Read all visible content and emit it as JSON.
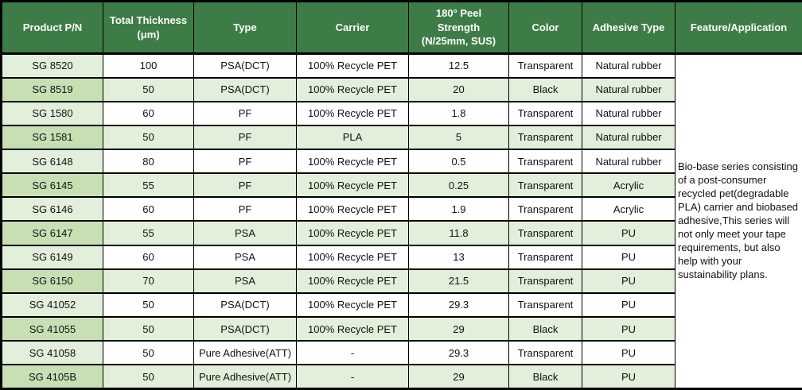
{
  "title": "Bio-base series tape product specification table",
  "colors": {
    "header_bg": "#3D7C46",
    "header_text": "#FFFFFF",
    "row_light": "#E2EFDA",
    "row_medium": "#C6E0B4",
    "row_white": "#FFFFFF",
    "border": "#000000",
    "body_text": "#111111"
  },
  "table": {
    "headers": [
      "Product P/N",
      "Total Thickness\n(μm)",
      "Type",
      "Carrier",
      "180° Peel\nStrength\n(N/25mm, SUS)",
      "Color",
      "Adhesive Type",
      "Feature/Application"
    ],
    "rows": [
      [
        "SG 8520",
        "100",
        "PSA(DCT)",
        "100% Recycle PET",
        "12.5",
        "Transparent",
        "Natural rubber"
      ],
      [
        "SG 8519",
        "50",
        "PSA(DCT)",
        "100% Recycle PET",
        "20",
        "Black",
        "Natural rubber"
      ],
      [
        "SG 1580",
        "60",
        "PF",
        "100% Recycle PET",
        "1.8",
        "Transparent",
        "Natural rubber"
      ],
      [
        "SG 1581",
        "50",
        "PF",
        "PLA",
        "5",
        "Transparent",
        "Natural rubber"
      ],
      [
        "SG 6148",
        "80",
        "PF",
        "100% Recycle PET",
        "0.5",
        "Transparent",
        "Natural rubber"
      ],
      [
        "SG 6145",
        "55",
        "PF",
        "100% Recycle PET",
        "0.25",
        "Transparent",
        "Acrylic"
      ],
      [
        "SG 6146",
        "60",
        "PF",
        "100% Recycle PET",
        "1.9",
        "Transparent",
        "Acrylic"
      ],
      [
        "SG 6147",
        "55",
        "PSA",
        "100% Recycle PET",
        "11.8",
        "Transparent",
        "PU"
      ],
      [
        "SG 6149",
        "60",
        "PSA",
        "100% Recycle PET",
        "13",
        "Transparent",
        "PU"
      ],
      [
        "SG 6150",
        "70",
        "PSA",
        "100% Recycle PET",
        "21.5",
        "Transparent",
        "PU"
      ],
      [
        "SG 41052",
        "50",
        "PSA(DCT)",
        "100% Recycle PET",
        "29.3",
        "Transparent",
        "PU"
      ],
      [
        "SG 41055",
        "50",
        "PSA(DCT)",
        "100% Recycle PET",
        "29",
        "Black",
        "PU"
      ],
      [
        "SG 41058",
        "50",
        "Pure Adhesive(ATT)",
        "-",
        "29.3",
        "Transparent",
        "PU"
      ],
      [
        "SG 4105B",
        "50",
        "Pure Adhesive(ATT)",
        "-",
        "29",
        "Black",
        "PU"
      ]
    ],
    "feature_text": "Bio-base series consisting of a post-consumer recycled pet(degradable PLA) carrier and  biobased adhesive,This series will not only meet your tape requirements, but also help with your sustainability plans."
  }
}
